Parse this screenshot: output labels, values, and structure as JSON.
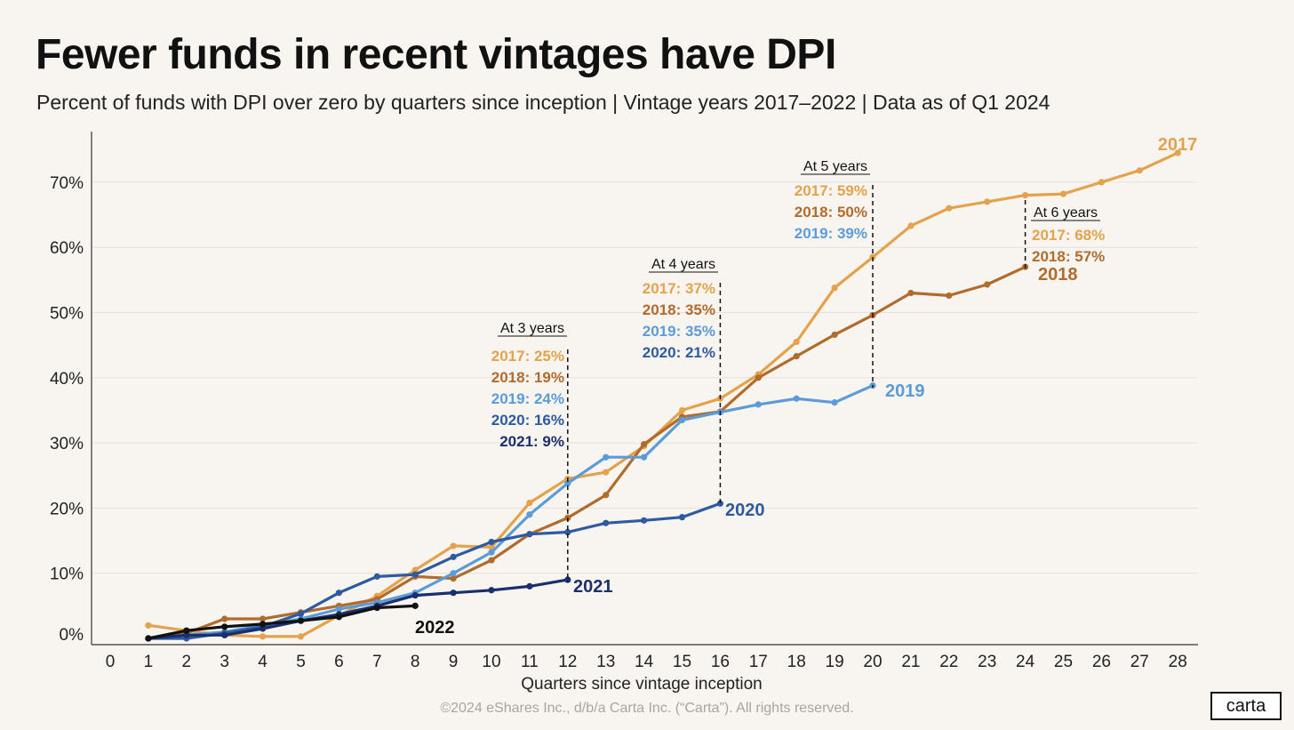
{
  "title": "Fewer funds in recent vintages have DPI",
  "subtitle": "Percent of funds with DPI over zero by quarters since inception | Vintage years 2017–2022 | Data as of Q1 2024",
  "footer": "©2024 eShares Inc., d/b/a Carta Inc. (“Carta”). All rights reserved.",
  "logo": "carta",
  "chart_data": {
    "type": "line",
    "xlabel": "Quarters since vintage inception",
    "ylabel": "",
    "xlim": [
      0,
      28
    ],
    "ylim": [
      0,
      75
    ],
    "x_ticks": [
      0,
      1,
      2,
      3,
      4,
      5,
      6,
      7,
      8,
      9,
      10,
      11,
      12,
      13,
      14,
      15,
      16,
      17,
      18,
      19,
      20,
      21,
      22,
      23,
      24,
      25,
      26,
      27,
      28
    ],
    "y_ticks": [
      {
        "value": 0,
        "label": "0%"
      },
      {
        "value": 10,
        "label": "10%"
      },
      {
        "value": 20,
        "label": "20%"
      },
      {
        "value": 30,
        "label": "30%"
      },
      {
        "value": 40,
        "label": "40%"
      },
      {
        "value": 50,
        "label": "50%"
      },
      {
        "value": 60,
        "label": "60%"
      },
      {
        "value": 70,
        "label": "70%"
      }
    ],
    "grid": true,
    "series": [
      {
        "name": "2017",
        "color": "#e3a24b",
        "x": [
          1,
          2,
          3,
          4,
          5,
          6,
          7,
          8,
          9,
          10,
          11,
          12,
          13,
          14,
          15,
          16,
          17,
          18,
          19,
          20,
          21,
          22,
          23,
          24,
          25,
          26,
          27,
          28
        ],
        "y": [
          2.0,
          1.2,
          0.5,
          0.3,
          0.3,
          3.5,
          6.5,
          10.5,
          14.2,
          14.0,
          20.8,
          24.5,
          25.5,
          29.5,
          35.0,
          36.8,
          40.5,
          45.5,
          53.8,
          58.5,
          63.3,
          66.0,
          67.0,
          68.0,
          68.2,
          70.0,
          71.8,
          74.5
        ]
      },
      {
        "name": "2018",
        "color": "#b06b2d",
        "x": [
          1,
          2,
          3,
          4,
          5,
          6,
          7,
          8,
          9,
          10,
          11,
          12,
          13,
          14,
          15,
          16,
          17,
          18,
          19,
          20,
          21,
          22,
          23,
          24
        ],
        "y": [
          0.0,
          0.8,
          3.0,
          3.0,
          4.0,
          5.0,
          6.0,
          9.5,
          9.2,
          12.0,
          16.0,
          18.5,
          22.0,
          29.8,
          34.0,
          34.8,
          40.0,
          43.3,
          46.6,
          49.6,
          53.0,
          52.6,
          54.3,
          57.0
        ]
      },
      {
        "name": "2019",
        "color": "#5b9bd8",
        "x": [
          1,
          2,
          3,
          4,
          5,
          6,
          7,
          8,
          9,
          10,
          11,
          12,
          13,
          14,
          15,
          16,
          17,
          18,
          19,
          20
        ],
        "y": [
          0.0,
          0.5,
          1.0,
          2.0,
          3.0,
          4.5,
          5.5,
          7.0,
          10.0,
          13.2,
          19.0,
          23.8,
          27.8,
          27.8,
          33.5,
          34.7,
          35.9,
          36.8,
          36.2,
          38.8
        ]
      },
      {
        "name": "2020",
        "color": "#2d5aa0",
        "x": [
          1,
          2,
          3,
          4,
          5,
          6,
          7,
          8,
          9,
          10,
          11,
          12,
          13,
          14,
          15,
          16
        ],
        "y": [
          0.0,
          0.0,
          0.8,
          1.8,
          3.8,
          7.0,
          9.5,
          9.8,
          12.5,
          14.8,
          16.0,
          16.3,
          17.7,
          18.1,
          18.6,
          20.7
        ]
      },
      {
        "name": "2021",
        "color": "#1a2f6b",
        "x": [
          1,
          2,
          3,
          4,
          5,
          6,
          7,
          8,
          9,
          10,
          11,
          12
        ],
        "y": [
          0.0,
          0.5,
          0.5,
          1.5,
          2.7,
          3.7,
          5.0,
          6.6,
          7.0,
          7.4,
          8.0,
          9.0
        ]
      },
      {
        "name": "2022",
        "color": "#111111",
        "x": [
          1,
          2,
          3,
          4,
          5,
          6,
          7,
          8
        ],
        "y": [
          0.0,
          1.2,
          1.8,
          2.2,
          2.7,
          3.3,
          4.7,
          5.0
        ]
      }
    ],
    "series_labels": [
      {
        "text": "2017",
        "color": "#e3a24b"
      },
      {
        "text": "2018",
        "color": "#b06b2d"
      },
      {
        "text": "2019",
        "color": "#5b9bd8"
      },
      {
        "text": "2020",
        "color": "#2d5aa0"
      },
      {
        "text": "2021",
        "color": "#1a2f6b"
      },
      {
        "text": "2022",
        "color": "#111111"
      }
    ],
    "annotations": [
      {
        "x": 12,
        "heading": "At 3 years",
        "entries": [
          {
            "text": "2017: 25%",
            "color": "#e3a24b"
          },
          {
            "text": "2018: 19%",
            "color": "#b06b2d"
          },
          {
            "text": "2019: 24%",
            "color": "#5b9bd8"
          },
          {
            "text": "2020: 16%",
            "color": "#2d5aa0"
          },
          {
            "text": "2021: 9%",
            "color": "#1a2f6b"
          }
        ]
      },
      {
        "x": 16,
        "heading": "At 4 years",
        "entries": [
          {
            "text": "2017: 37%",
            "color": "#e3a24b"
          },
          {
            "text": "2018: 35%",
            "color": "#b06b2d"
          },
          {
            "text": "2019: 35%",
            "color": "#5b9bd8"
          },
          {
            "text": "2020: 21%",
            "color": "#2d5aa0"
          }
        ]
      },
      {
        "x": 20,
        "heading": "At 5 years",
        "entries": [
          {
            "text": "2017: 59%",
            "color": "#e3a24b"
          },
          {
            "text": "2018: 50%",
            "color": "#b06b2d"
          },
          {
            "text": "2019: 39%",
            "color": "#5b9bd8"
          }
        ]
      },
      {
        "x": 24,
        "heading": "At 6 years",
        "entries": [
          {
            "text": "2017: 68%",
            "color": "#e3a24b"
          },
          {
            "text": "2018: 57%",
            "color": "#b06b2d"
          }
        ]
      }
    ]
  }
}
